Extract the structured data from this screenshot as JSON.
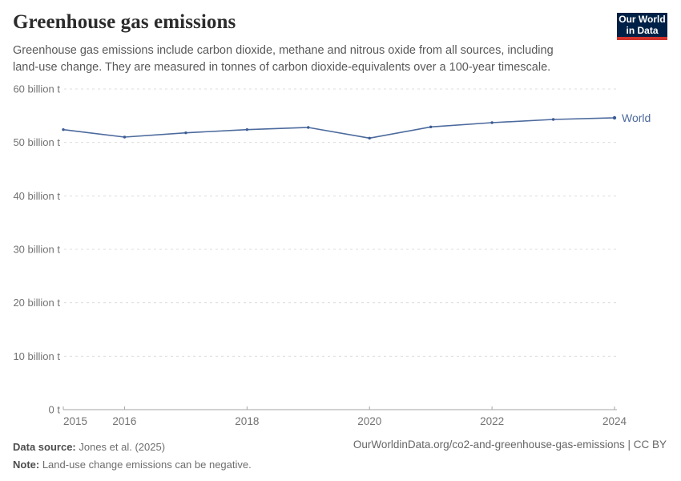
{
  "header": {
    "title": "Greenhouse gas emissions",
    "subtitle": "Greenhouse gas emissions include carbon dioxide, methane and nitrous oxide from all sources, including land-use change. They are measured in tonnes of carbon dioxide-equivalents over a 100-year timescale.",
    "logo": {
      "line1": "Our World",
      "line2": "in Data",
      "bg_color": "#002147",
      "accent_color": "#d0342c"
    }
  },
  "chart_data": {
    "type": "line",
    "title": "Greenhouse gas emissions",
    "unit": "billion t",
    "x": [
      2015,
      2016,
      2017,
      2018,
      2019,
      2020,
      2021,
      2022,
      2023,
      2024
    ],
    "series": [
      {
        "name": "World",
        "color": "#4c6a9d",
        "marker_color": "#3a5c94",
        "values": [
          52.4,
          51.0,
          51.8,
          52.4,
          52.8,
          50.8,
          52.9,
          53.7,
          54.3,
          54.6
        ]
      }
    ],
    "xlim": [
      2015,
      2024
    ],
    "ylim": [
      0,
      60
    ],
    "y_ticks": [
      {
        "value": 0,
        "label": "0 t"
      },
      {
        "value": 10,
        "label": "10 billion t"
      },
      {
        "value": 20,
        "label": "20 billion t"
      },
      {
        "value": 30,
        "label": "30 billion t"
      },
      {
        "value": 40,
        "label": "40 billion t"
      },
      {
        "value": 50,
        "label": "50 billion t"
      },
      {
        "value": 60,
        "label": "60 billion t"
      }
    ],
    "x_tick_labels": [
      2015,
      2016,
      2018,
      2020,
      2022,
      2024
    ],
    "grid": "horizontal-dashed",
    "grid_color": "#dcdcdc",
    "axis_color": "#a6a6a6",
    "tick_label_color": "#737373",
    "legend_position": "end-of-line",
    "end_label": "World"
  },
  "footer": {
    "data_source_label": "Data source:",
    "data_source_value": " Jones et al. (2025)",
    "note_label": "Note:",
    "note_value": " Land-use change emissions can be negative.",
    "link": "OurWorldinData.org/co2-and-greenhouse-gas-emissions | CC BY"
  }
}
